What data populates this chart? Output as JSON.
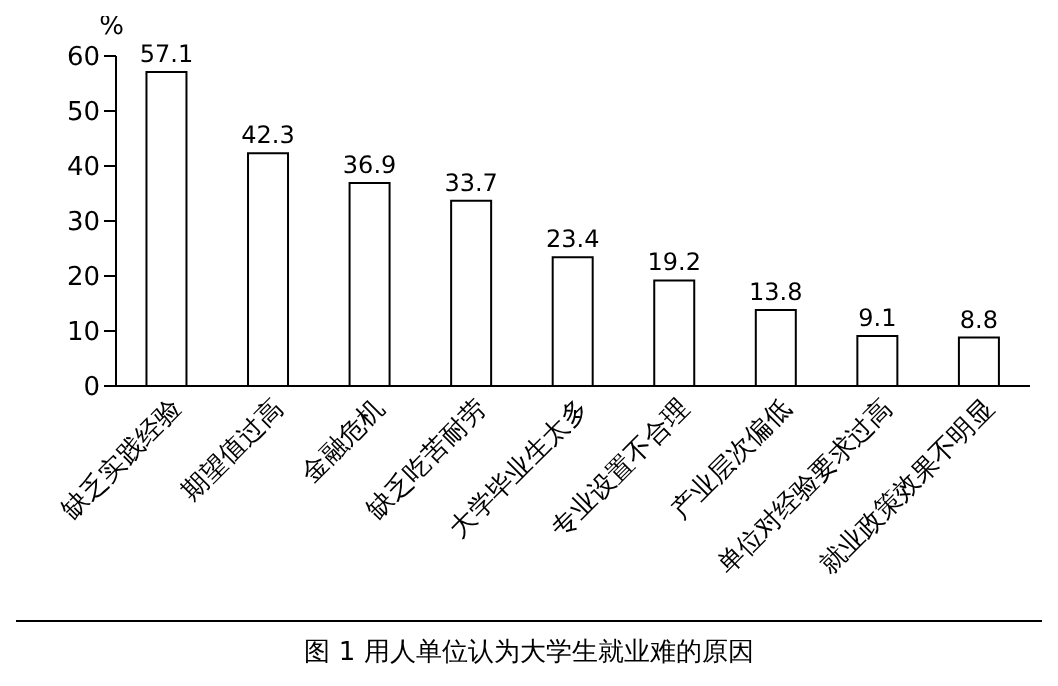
{
  "chart_data": {
    "type": "bar",
    "ylabel": "%",
    "annotations": [
      "图 1 用人单位认为大学生就业难的原因"
    ],
    "categories": [
      "缺乏实践经验",
      "期望值过高",
      "金融危机",
      "缺乏吃苦耐劳",
      "大学毕业生太多",
      "专业设置不合理",
      "产业层次偏低",
      "单位对经验要求过高",
      "就业政策效果不明显"
    ],
    "values": [
      57.1,
      42.3,
      36.9,
      33.7,
      23.4,
      19.2,
      13.8,
      9.1,
      8.8
    ],
    "color": "#ffffff",
    "ylim": [
      0,
      60
    ],
    "yticks": [
      0,
      10,
      20,
      30,
      40,
      50,
      60
    ],
    "grid": false,
    "data_labels": true,
    "legend": false
  }
}
